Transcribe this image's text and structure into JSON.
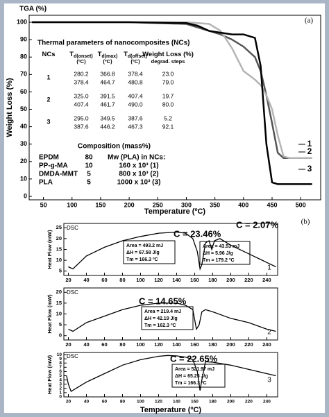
{
  "chart_data": [
    {
      "type": "line",
      "title": "TGA (%)",
      "panel_label": "(a)",
      "xlabel": "Temperature (ºC)",
      "ylabel": "Weight Loss (%)",
      "x": [
        30,
        100,
        200,
        300,
        320,
        340,
        360,
        380,
        400,
        420,
        430,
        440,
        450,
        460,
        470,
        480,
        500,
        520
      ],
      "series": [
        {
          "name": "1",
          "color": "#555555",
          "values": [
            100,
            100,
            100,
            99,
            97,
            95,
            93,
            90,
            86,
            80,
            72,
            58,
            42,
            25,
            22,
            22,
            22,
            22
          ]
        },
        {
          "name": "2",
          "color": "#b4b4b4",
          "values": [
            100,
            100,
            100,
            100,
            99.5,
            99,
            95,
            85,
            72,
            67,
            64,
            58,
            50,
            35,
            23,
            22,
            22,
            22
          ]
        },
        {
          "name": "3",
          "color": "#000000",
          "values": [
            100,
            100,
            100,
            99.5,
            98,
            95,
            94,
            93,
            93,
            91,
            75,
            30,
            8,
            7,
            7,
            7,
            7,
            7
          ]
        }
      ],
      "xlim": [
        25,
        535
      ],
      "xticks": [
        50,
        100,
        150,
        200,
        250,
        300,
        350,
        400,
        450,
        500
      ],
      "ylim": [
        -2,
        104
      ],
      "yticks": [
        0,
        10,
        20,
        30,
        40,
        50,
        60,
        70,
        80,
        90,
        100
      ]
    },
    {
      "type": "line",
      "title": "DSC",
      "panel_label": "(b)",
      "ylabel": "Heat Flow (mW)",
      "x": [
        20,
        25,
        40,
        60,
        80,
        100,
        120,
        140,
        150,
        158,
        163,
        166,
        168,
        172,
        176,
        179,
        182,
        188,
        200,
        220,
        240,
        250
      ],
      "series": [
        {
          "name": "1",
          "color": "#000000",
          "values": [
            7,
            6,
            12,
            16,
            19,
            21,
            22.5,
            23,
            22.5,
            20,
            14,
            6,
            8,
            18,
            19,
            15,
            19,
            20,
            17,
            13,
            9,
            7
          ]
        }
      ],
      "xlim": [
        15,
        252
      ],
      "xticks": [
        20,
        40,
        60,
        80,
        100,
        120,
        140,
        160,
        180,
        200,
        220,
        240
      ],
      "ylim": [
        3,
        27
      ],
      "yticks": [
        5,
        10,
        15,
        20,
        25
      ],
      "annotations": [
        "C = 23.46%",
        "Area = 493.2 mJ",
        "ΔH = 67.58 J/g",
        "Tm = 166.3 ºC",
        "C = 2.07%",
        "Area = 43.53 mJ",
        "ΔH = 5.96 J/g",
        "Tm = 179.2 ºC"
      ]
    },
    {
      "type": "line",
      "title": "DSC",
      "ylabel": "Heat Flow (mW)",
      "x": [
        20,
        25,
        40,
        60,
        80,
        100,
        120,
        140,
        150,
        158,
        162,
        165,
        168,
        172,
        180,
        200,
        220,
        240,
        250
      ],
      "series": [
        {
          "name": "2",
          "color": "#000000",
          "values": [
            3,
            2,
            6,
            9,
            12,
            14,
            15,
            15,
            14,
            12,
            3,
            5,
            11,
            12,
            11,
            8,
            6,
            3,
            2
          ]
        }
      ],
      "xlim": [
        15,
        252
      ],
      "xticks": [
        20,
        40,
        60,
        80,
        100,
        120,
        140,
        160,
        180,
        200,
        220,
        240
      ],
      "ylim": [
        -2,
        22
      ],
      "yticks": [
        0,
        5,
        10,
        15,
        20
      ],
      "annotations": [
        "C = 14.65%",
        "Area = 219.4 mJ",
        "ΔH = 42.19 J/g",
        "Tm = 162.3 ºC"
      ]
    },
    {
      "type": "line",
      "title": "DSC",
      "xlabel": "Temperature (ºC)",
      "ylabel": "Heat Flow (mW)",
      "x": [
        18,
        20,
        23,
        40,
        60,
        80,
        100,
        120,
        130,
        140,
        150,
        158,
        163,
        166,
        168,
        172,
        180,
        200,
        220,
        240,
        250
      ],
      "series": [
        {
          "name": "3",
          "color": "#000000",
          "values": [
            5,
            3,
            1.3,
            3.5,
            5.5,
            7.5,
            8.8,
            9.6,
            9.8,
            9.7,
            9.4,
            8.8,
            6,
            1.5,
            4,
            8.3,
            8.2,
            7.5,
            6.5,
            5.5,
            5
          ]
        }
      ],
      "xlim": [
        15,
        252
      ],
      "xticks": [
        20,
        40,
        60,
        80,
        100,
        120,
        140,
        160,
        180,
        200,
        220,
        240
      ],
      "ylim": [
        0,
        10.5
      ],
      "yticks": [
        0,
        1,
        2,
        3,
        4,
        5,
        6,
        7,
        8,
        9,
        10
      ],
      "annotations": [
        "C = 22.65%",
        "Area = 521.97 mJ",
        "ΔH = 65.25 J/g",
        "Tm = 166.3 ºC"
      ]
    }
  ],
  "nc_table": {
    "title": "Thermal parameters of nanocomposites (NCs)",
    "headers": [
      {
        "text": "NCs"
      },
      {
        "text": "T",
        "sub": "d(onset)",
        "unit": "(ºC)"
      },
      {
        "text": "T",
        "sub": "d(max)",
        "unit": "(ºC)"
      },
      {
        "text": "T",
        "sub": "d(offset)",
        "unit": "(ºC)"
      },
      {
        "text": "Weight Loss (%)",
        "unit": "degrad. steps"
      }
    ],
    "rows": [
      {
        "nc": "1",
        "steps": [
          [
            "280.2",
            "366.8",
            "378.4",
            "23.0"
          ],
          [
            "378.4",
            "464.7",
            "480.8",
            "79.0"
          ]
        ]
      },
      {
        "nc": "2",
        "steps": [
          [
            "325.0",
            "391.5",
            "407.4",
            "19.7"
          ],
          [
            "407.4",
            "461.7",
            "490.0",
            "80.0"
          ]
        ]
      },
      {
        "nc": "3",
        "steps": [
          [
            "295.0",
            "349.5",
            "387.6",
            "5.2"
          ],
          [
            "387.6",
            "446.2",
            "467.3",
            "92.1"
          ]
        ]
      }
    ]
  },
  "composition": {
    "title": "Composition (mass%)",
    "components": [
      {
        "name": "EPDM",
        "mass": 80
      },
      {
        "name": "PP-g-MA",
        "mass": 10
      },
      {
        "name": "DMDA-MMT",
        "mass": 5
      },
      {
        "name": "PLA",
        "mass": 5
      }
    ],
    "mw_title": "Mw (PLA) in NCs:",
    "mw": [
      "160 x 10³ (1)",
      "800 x 10³ (2)",
      "1000 x 10³ (3)"
    ]
  }
}
